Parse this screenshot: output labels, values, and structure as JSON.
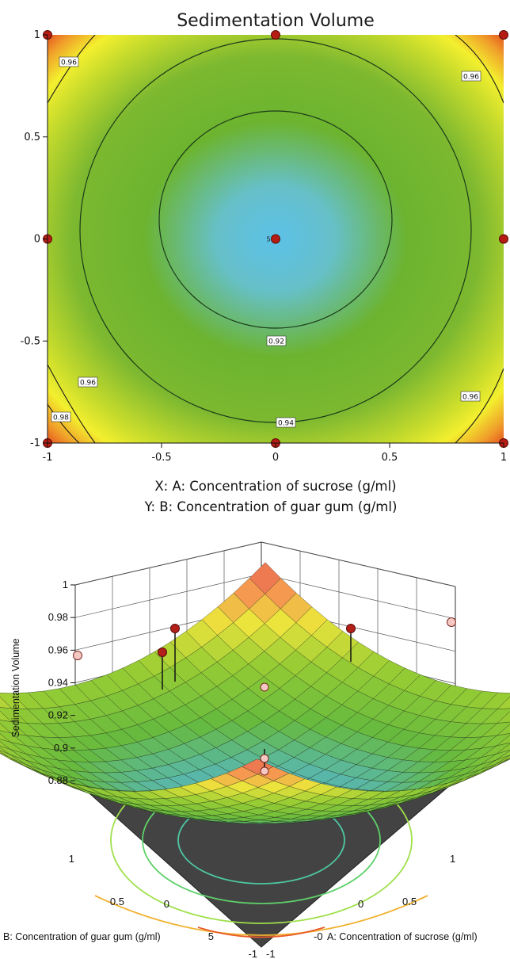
{
  "chart_data": [
    {
      "type": "contour",
      "title": "Sedimentation Volume",
      "xlabel": "X: A: Concentration of sucrose (g/ml)",
      "ylabel": "Y: B: Concentration of guar gum (g/ml)",
      "xlim": [
        -1,
        1
      ],
      "ylim": [
        -1,
        1
      ],
      "x_ticks": [
        "-1",
        "-0.5",
        "0",
        "0.5",
        "1"
      ],
      "y_ticks": [
        "-1",
        "-0.5",
        "0",
        "0.5",
        "1"
      ],
      "contour_levels": [
        "0.92",
        "0.94",
        "0.96",
        "0.96",
        "0.96",
        "0.96",
        "0.98"
      ],
      "design_points": [
        {
          "x": -1,
          "y": 1
        },
        {
          "x": 0,
          "y": 1
        },
        {
          "x": 1,
          "y": 1
        },
        {
          "x": -1,
          "y": 0
        },
        {
          "x": 0,
          "y": 0,
          "label": "5"
        },
        {
          "x": 1,
          "y": 0
        },
        {
          "x": -1,
          "y": -1
        },
        {
          "x": 0,
          "y": -1
        },
        {
          "x": 1,
          "y": -1
        }
      ],
      "colors": {
        "low": "#5cc1e8",
        "mid": "#6cb42f",
        "high_1": "#f3ef2e",
        "high_2": "#e23a1d"
      }
    },
    {
      "type": "surface",
      "zlabel": "Sedimentation Volume",
      "xlabel": "A: Concentration of sucrose (g/ml)",
      "ylabel": "B: Concentration of guar gum (g/ml)",
      "z_ticks": [
        "0.88",
        "0.9",
        "0.92",
        "0.94",
        "0.96",
        "0.98",
        "1"
      ],
      "zlim": [
        0.88,
        1
      ],
      "a_ticks": [
        "1",
        "0.5",
        "0",
        "-0",
        "-1"
      ],
      "b_ticks": [
        "1",
        "0.5",
        "0",
        "5",
        "-1"
      ],
      "surface": {
        "min": 0.9,
        "corner_max": 0.99
      }
    }
  ]
}
